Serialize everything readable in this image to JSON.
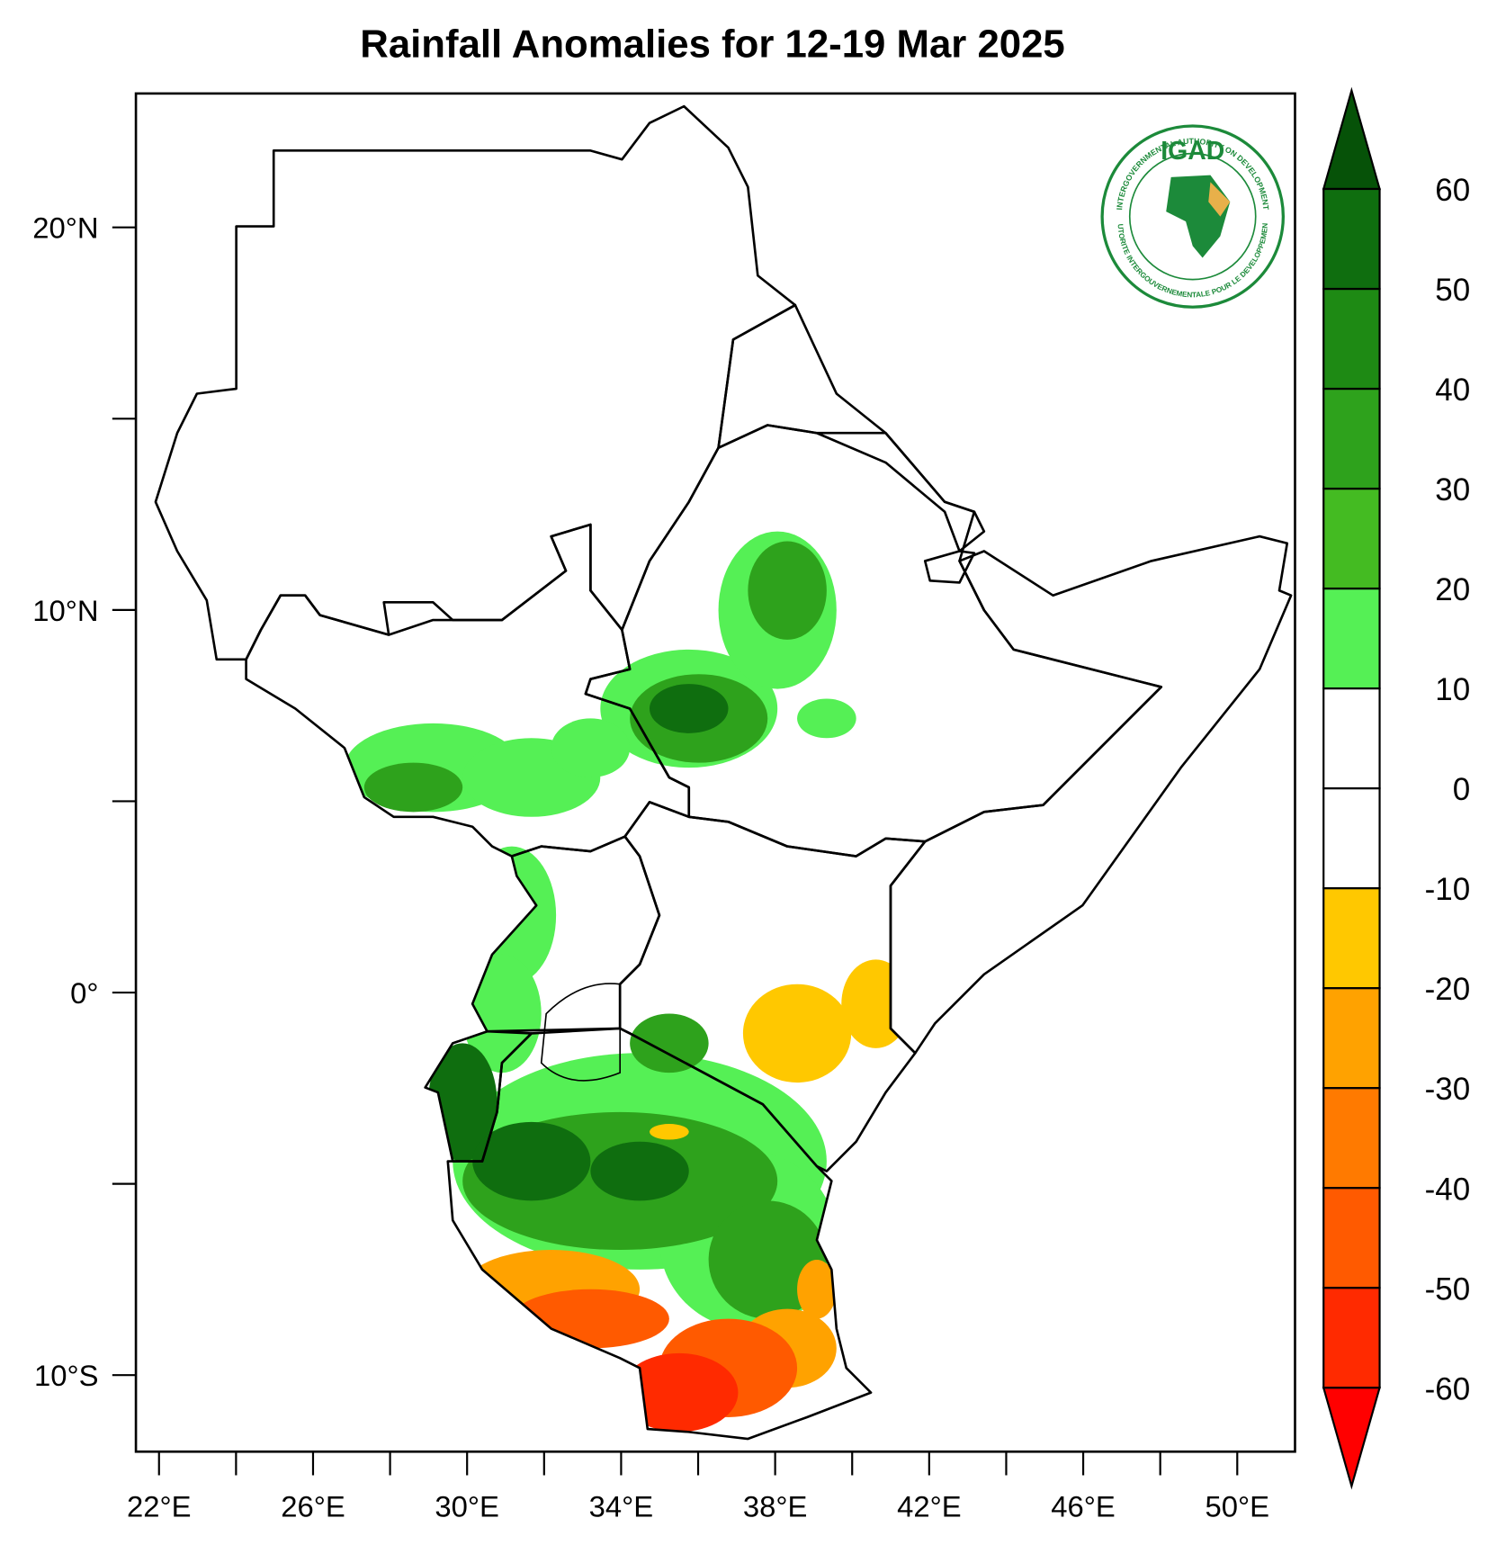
{
  "chart_data": {
    "type": "map",
    "title": "Rainfall Anomalies for 12-19 Mar 2025",
    "xlim": [
      21.4,
      51.5
    ],
    "ylim": [
      -12,
      23.5
    ],
    "xticks": [
      {
        "value": 22,
        "label": "22°E"
      },
      {
        "value": 26,
        "label": "26°E"
      },
      {
        "value": 30,
        "label": "30°E"
      },
      {
        "value": 34,
        "label": "34°E"
      },
      {
        "value": 38,
        "label": "38°E"
      },
      {
        "value": 42,
        "label": "42°E"
      },
      {
        "value": 46,
        "label": "46°E"
      },
      {
        "value": 50,
        "label": "50°E"
      }
    ],
    "xminorticks": [
      24,
      28,
      32,
      36,
      40,
      44,
      48
    ],
    "yticks": [
      {
        "value": 20,
        "label": "20°N"
      },
      {
        "value": 10,
        "label": "10°N"
      },
      {
        "value": 0,
        "label": "0°"
      },
      {
        "value": -10,
        "label": "10°S"
      }
    ],
    "yminorticks": [
      15,
      5,
      -5
    ],
    "colorbar": {
      "levels": [
        -60,
        -50,
        -40,
        -30,
        -20,
        -10,
        0,
        10,
        20,
        30,
        40,
        50,
        60
      ],
      "colors": [
        "#ff0000",
        "#ff2a00",
        "#ff5a00",
        "#ff7a00",
        "#ffa200",
        "#ffc800",
        "#ffffff",
        "#ffffff",
        "#55f055",
        "#44bb22",
        "#2ea21c",
        "#1e8a14",
        "#0f6e0f",
        "#065208"
      ]
    },
    "logo": {
      "name": "IGAD",
      "top_text": "INTERGOVERNMENTAL AUTHORITY ON DEVELOPMENT",
      "bottom_text": "AUTORITE INTERGOUVERNEMENTALE POUR LE DEVELOPPEMENT"
    }
  }
}
